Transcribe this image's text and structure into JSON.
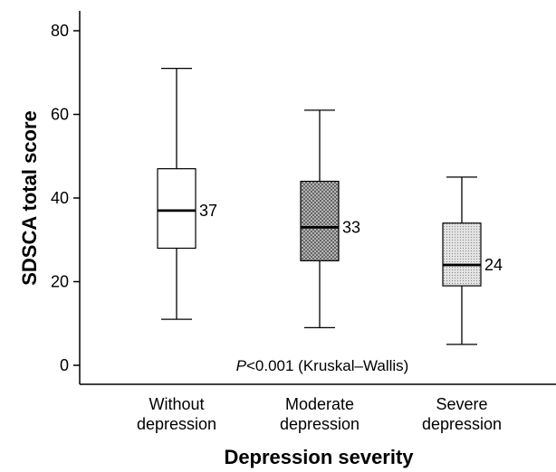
{
  "chart_data": {
    "type": "box",
    "xlabel": "Depression severity",
    "ylabel": "SDSCA total score",
    "ylim": [
      0,
      80
    ],
    "yticks": [
      0,
      20,
      40,
      60,
      80
    ],
    "categories": [
      [
        "Without",
        "depression"
      ],
      [
        "Moderate",
        "depression"
      ],
      [
        "Severe",
        "depression"
      ]
    ],
    "boxes": [
      {
        "min": 11,
        "q1": 28,
        "median": 37,
        "q3": 47,
        "max": 71,
        "median_label": "37",
        "fill": "#ffffff",
        "pattern": "none"
      },
      {
        "min": 9,
        "q1": 25,
        "median": 33,
        "q3": 44,
        "max": 61,
        "median_label": "33",
        "fill": "#bdbdbd",
        "pattern": "crosshatch"
      },
      {
        "min": 5,
        "q1": 19,
        "median": 24,
        "q3": 34,
        "max": 45,
        "median_label": "24",
        "fill": "#dcdcdc",
        "pattern": "dots"
      }
    ],
    "annotation": {
      "italic": "P",
      "text": "<0.001 (Kruskal–Wallis)",
      "y": 0
    }
  }
}
